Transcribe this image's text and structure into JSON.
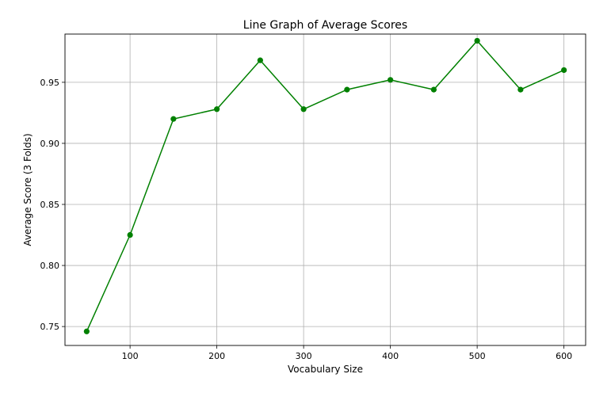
{
  "chart_data": {
    "type": "line",
    "title": "Line Graph of Average Scores",
    "xlabel": "Vocabulary Size",
    "ylabel": "Average Score (3 Folds)",
    "x": [
      50,
      100,
      150,
      200,
      250,
      300,
      350,
      400,
      450,
      500,
      550,
      600
    ],
    "series": [
      {
        "values": [
          0.746,
          0.825,
          0.92,
          0.928,
          0.968,
          0.928,
          0.944,
          0.952,
          0.944,
          0.984,
          0.944,
          0.96
        ],
        "color": "#008000",
        "marker": "circle"
      }
    ],
    "xlim": [
      25,
      625
    ],
    "ylim": [
      0.7345,
      0.9895
    ],
    "xticks": [
      100,
      200,
      300,
      400,
      500,
      600
    ],
    "xtick_labels": [
      "100",
      "200",
      "300",
      "400",
      "500",
      "600"
    ],
    "yticks": [
      0.75,
      0.8,
      0.85,
      0.9,
      0.95
    ],
    "ytick_labels": [
      "0.75",
      "0.80",
      "0.85",
      "0.90",
      "0.95"
    ],
    "grid": true,
    "legend": "none"
  }
}
